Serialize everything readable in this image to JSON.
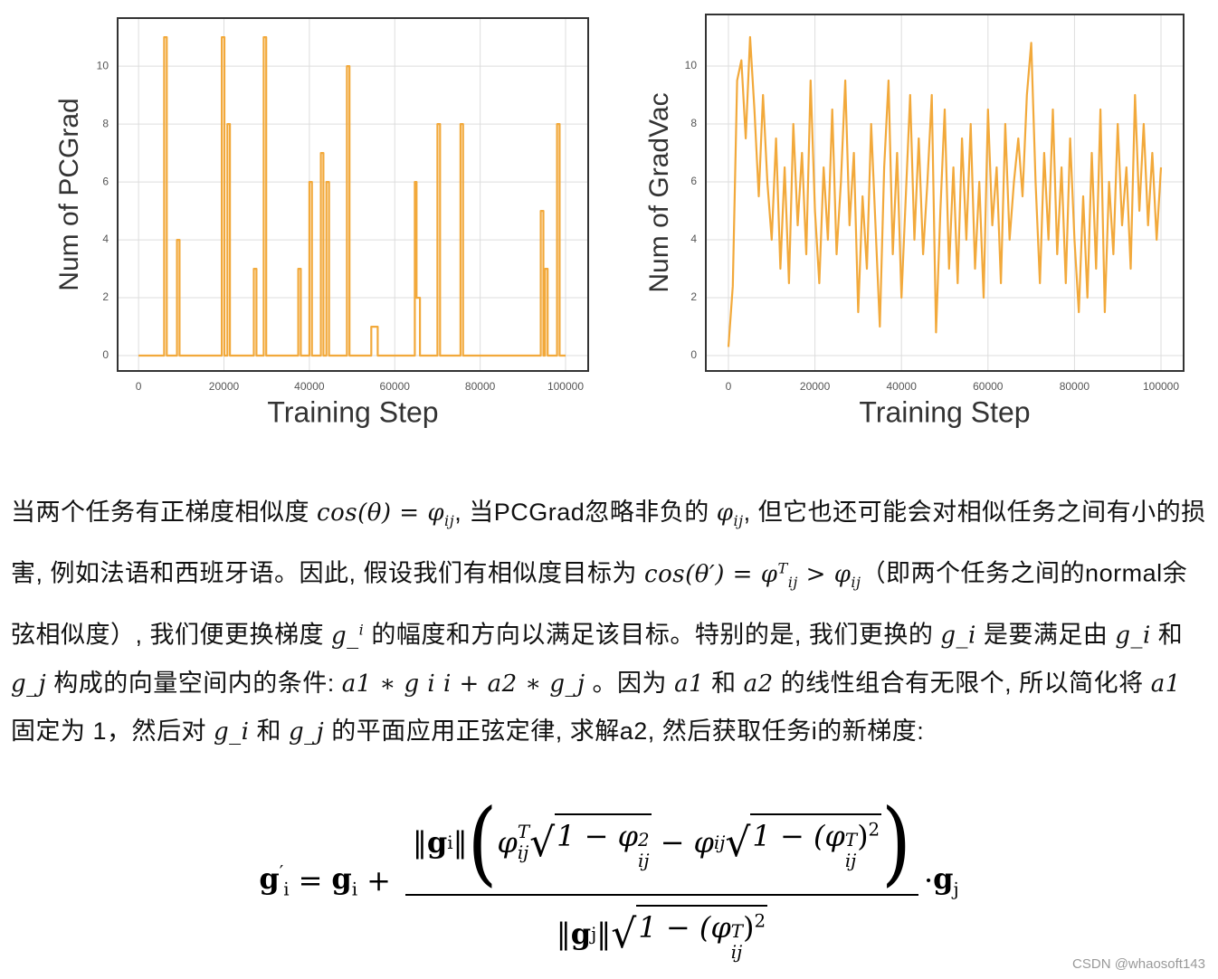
{
  "chart_data": [
    {
      "type": "line",
      "xlabel": "Training Step",
      "ylabel": "Num of PCGrad",
      "color": "#f2a93b",
      "grid": true,
      "xlim": [
        -4900,
        105300
      ],
      "ylim": [
        -0.53,
        11.66
      ],
      "xticks": [
        0,
        20000,
        40000,
        60000,
        80000,
        100000
      ],
      "yticks": [
        0,
        2,
        4,
        6,
        8,
        10
      ],
      "x": [
        0,
        6000,
        6000,
        6600,
        6600,
        9000,
        9000,
        9600,
        9600,
        19500,
        19500,
        20100,
        20100,
        20800,
        20800,
        21400,
        21400,
        27000,
        27000,
        27600,
        27600,
        29300,
        29300,
        29900,
        29900,
        37400,
        37400,
        38000,
        38000,
        40000,
        40000,
        40600,
        40600,
        42700,
        42700,
        43300,
        43300,
        44000,
        44000,
        44600,
        44600,
        48800,
        48800,
        49400,
        49400,
        54500,
        54500,
        56000,
        56000,
        64700,
        64700,
        65100,
        65100,
        65900,
        65900,
        70000,
        70000,
        70600,
        70600,
        75400,
        75400,
        76000,
        76000,
        94200,
        94200,
        94800,
        94800,
        95200,
        95200,
        95800,
        95800,
        98000,
        98000,
        98600,
        98600,
        100000
      ],
      "values": [
        0,
        0,
        11,
        11,
        0,
        0,
        4,
        4,
        0,
        0,
        11,
        11,
        0,
        0,
        8,
        8,
        0,
        0,
        3,
        3,
        0,
        0,
        11,
        11,
        0,
        0,
        3,
        3,
        0,
        0,
        6,
        6,
        0,
        0,
        7,
        7,
        0,
        0,
        6,
        6,
        0,
        0,
        10,
        10,
        0,
        0,
        1,
        1,
        0,
        0,
        6,
        6,
        2,
        2,
        0,
        0,
        8,
        8,
        0,
        0,
        8,
        8,
        0,
        0,
        5,
        5,
        0,
        0,
        3,
        3,
        0,
        0,
        8,
        8,
        0,
        0
      ]
    },
    {
      "type": "line",
      "xlabel": "Training Step",
      "ylabel": "Num of GradVac",
      "color": "#f2a93b",
      "grid": true,
      "xlim": [
        -5230,
        105230
      ],
      "ylim": [
        -0.53,
        11.78
      ],
      "xticks": [
        0,
        20000,
        40000,
        60000,
        80000,
        100000
      ],
      "yticks": [
        0,
        2,
        4,
        6,
        8,
        10
      ],
      "x": [
        0,
        1000,
        2000,
        3000,
        4000,
        5000,
        6000,
        7000,
        8000,
        9000,
        10000,
        11000,
        12000,
        13000,
        14000,
        15000,
        16000,
        17000,
        18000,
        19000,
        20000,
        21000,
        22000,
        23000,
        24000,
        25000,
        26000,
        27000,
        28000,
        29000,
        30000,
        31000,
        32000,
        33000,
        34000,
        35000,
        36000,
        37000,
        38000,
        39000,
        40000,
        41000,
        42000,
        43000,
        44000,
        45000,
        46000,
        47000,
        48000,
        49000,
        50000,
        51000,
        52000,
        53000,
        54000,
        55000,
        56000,
        57000,
        58000,
        59000,
        60000,
        61000,
        62000,
        63000,
        64000,
        65000,
        66000,
        67000,
        68000,
        69000,
        70000,
        71000,
        72000,
        73000,
        74000,
        75000,
        76000,
        77000,
        78000,
        79000,
        80000,
        81000,
        82000,
        83000,
        84000,
        85000,
        86000,
        87000,
        88000,
        89000,
        90000,
        91000,
        92000,
        93000,
        94000,
        95000,
        96000,
        97000,
        98000,
        99000,
        100000
      ],
      "values": [
        0.3,
        2.4,
        9.5,
        10.2,
        7.5,
        11.0,
        8.5,
        5.5,
        9.0,
        6.0,
        4.0,
        7.5,
        3.0,
        6.5,
        2.5,
        8.0,
        4.5,
        7.0,
        3.5,
        9.5,
        5.0,
        2.5,
        6.5,
        4.0,
        8.5,
        3.5,
        6.0,
        9.5,
        4.5,
        7.0,
        1.5,
        5.5,
        3.0,
        8.0,
        4.5,
        1.0,
        6.5,
        9.5,
        3.5,
        7.0,
        2.0,
        5.5,
        9.0,
        4.0,
        7.5,
        3.5,
        6.0,
        9.0,
        0.8,
        5.0,
        8.5,
        3.0,
        6.5,
        2.5,
        7.5,
        4.0,
        8.0,
        3.0,
        6.0,
        2.0,
        8.5,
        4.5,
        6.5,
        2.5,
        8.0,
        4.0,
        6.0,
        7.5,
        5.5,
        9.0,
        10.8,
        6.0,
        2.5,
        7.0,
        4.0,
        8.5,
        3.5,
        6.5,
        2.5,
        7.5,
        4.0,
        1.5,
        5.5,
        2.0,
        7.0,
        3.0,
        8.5,
        1.5,
        6.0,
        3.5,
        8.0,
        4.5,
        6.5,
        3.0,
        9.0,
        5.0,
        8.0,
        4.5,
        7.0,
        4.0,
        6.5
      ]
    }
  ],
  "paragraph": [
    "当两个任务有正梯度相似度 ",
    {
      "math": [
        "cos(θ) = ",
        {
          "base": "φ",
          "sub": "ij"
        }
      ]
    },
    ", 当PCGrad忽略非负的 ",
    {
      "math": [
        {
          "base": "φ",
          "sub": "ij"
        }
      ]
    },
    ", 但它也还可能会对相似任务之间有小的损害, 例如法语和西班牙语。因此, 假设我们有相似度目标为 ",
    {
      "math": [
        "cos(θ′) = ",
        {
          "base": "φ",
          "sub": "ij",
          "sup": "T"
        },
        " > ",
        {
          "base": "φ",
          "sub": "ij"
        }
      ]
    },
    "（即两个任务之间的normal余弦相似度）, 我们便更换梯度 ",
    {
      "math": [
        {
          "base": "g_",
          "sup": "i"
        }
      ]
    },
    " 的幅度和方向以满足该目标。特别的是, 我们更换的 ",
    {
      "math": [
        "g_i"
      ]
    },
    " 是要满足由 ",
    {
      "math": [
        "g_i"
      ]
    },
    " 和 ",
    {
      "math": [
        "g_j"
      ]
    },
    " 构成的向量空间内的条件: ",
    {
      "math": [
        "a1 ∗ g i i + a2 ∗ g_j"
      ]
    },
    " 。因为 ",
    {
      "math": [
        "a1"
      ]
    },
    " 和 ",
    {
      "math": [
        "a2"
      ]
    },
    " 的线性组合有无限个, 所以简化将 ",
    {
      "math": [
        "a1"
      ]
    },
    " 固定为 1，然后对 ",
    {
      "math": [
        "g_i"
      ]
    },
    " 和 ",
    {
      "math": [
        "g_j"
      ]
    },
    " 的平面应用正弦定律, 求解a2, 然后获取任务i的新梯度:"
  ],
  "formula": [
    "g",
    "′",
    "i",
    "=",
    "g",
    "i",
    "+",
    "‖",
    "g",
    "i",
    "‖",
    "(",
    "φ",
    "T",
    "ij",
    "1 − φ",
    "2",
    "ij",
    "−",
    "φ",
    "ij",
    "1 − (φ",
    "T",
    "ij",
    ")",
    "2",
    ")",
    "‖",
    "g",
    "j",
    "‖",
    "1 − (φ",
    "T",
    "ij",
    ")",
    "2",
    "·",
    "g",
    "j"
  ],
  "watermark": "CSDN @whaosoft143"
}
